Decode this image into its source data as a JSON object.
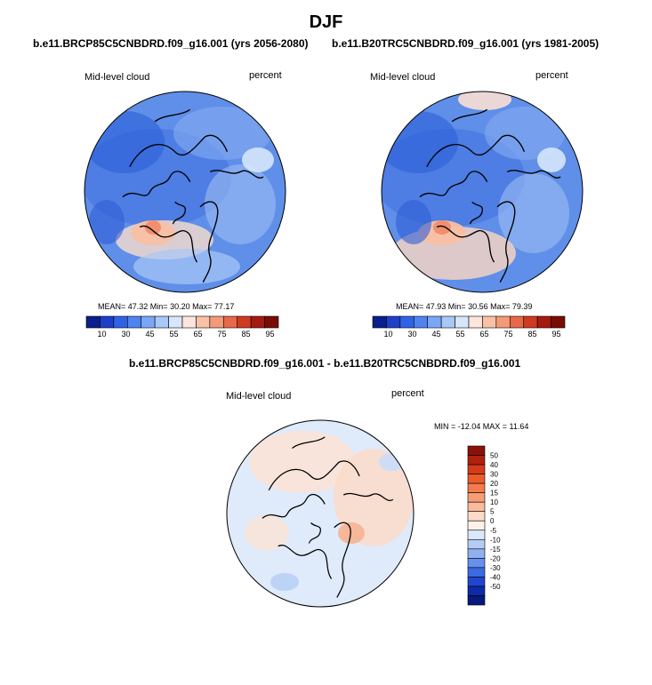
{
  "page": {
    "title": "DJF"
  },
  "chart_data": [
    {
      "type": "heatmap",
      "projection": "polar",
      "title": "b.e11.BRCP85C5CNBDRD.f09_g16.001 (yrs 2056-2080)",
      "variable": "Mid-level cloud",
      "units": "percent",
      "stats": {
        "mean": "47.32",
        "min": "30.20",
        "max": "77.17"
      },
      "colorbar": {
        "orientation": "horizontal",
        "ticks": [
          "10",
          "30",
          "45",
          "55",
          "65",
          "75",
          "85",
          "95"
        ],
        "colors": [
          "#0a1f8c",
          "#1f3fc8",
          "#2f63e6",
          "#4f84f0",
          "#7aa7f5",
          "#a8c8f8",
          "#d6e6fb",
          "#fbe5dc",
          "#f9c1a6",
          "#f39a78",
          "#e8684a",
          "#cf3a22",
          "#a51a10",
          "#7a0c06"
        ]
      }
    },
    {
      "type": "heatmap",
      "projection": "polar",
      "title": "b.e11.B20TRC5CNBDRD.f09_g16.001 (yrs 1981-2005)",
      "variable": "Mid-level cloud",
      "units": "percent",
      "stats": {
        "mean": "47.93",
        "min": "30.56",
        "max": "79.39"
      },
      "colorbar": {
        "orientation": "horizontal",
        "ticks": [
          "10",
          "30",
          "45",
          "55",
          "65",
          "75",
          "85",
          "95"
        ],
        "colors": [
          "#0a1f8c",
          "#1f3fc8",
          "#2f63e6",
          "#4f84f0",
          "#7aa7f5",
          "#a8c8f8",
          "#d6e6fb",
          "#fbe5dc",
          "#f9c1a6",
          "#f39a78",
          "#e8684a",
          "#cf3a22",
          "#a51a10",
          "#7a0c06"
        ]
      }
    },
    {
      "type": "heatmap",
      "projection": "polar",
      "title": "b.e11.BRCP85C5CNBDRD.f09_g16.001 - b.e11.B20TRC5CNBDRD.f09_g16.001",
      "variable": "Mid-level cloud",
      "units": "percent",
      "stats_text": "MIN = -12.04 MAX =  11.64",
      "colorbar": {
        "orientation": "vertical",
        "ticks": [
          "50",
          "40",
          "30",
          "20",
          "15",
          "10",
          "5",
          "0",
          "-5",
          "-10",
          "-15",
          "-20",
          "-30",
          "-40",
          "-50"
        ],
        "colors": [
          "#8a1208",
          "#b0200e",
          "#d63a18",
          "#ee5a2a",
          "#f47c4c",
          "#f79d74",
          "#f9bb9c",
          "#fbdac8",
          "#fdf1ea",
          "#dbe8fb",
          "#b5cdf6",
          "#8fb0f1",
          "#6690ec",
          "#3d6ae2",
          "#2046cf",
          "#0e2aa8",
          "#061a7c"
        ]
      }
    }
  ],
  "colors": {
    "land": "#000000",
    "background": "#ffffff"
  }
}
